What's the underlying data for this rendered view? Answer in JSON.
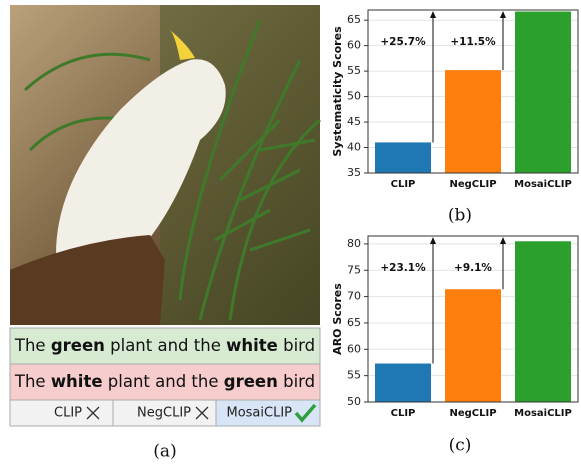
{
  "panel_a": {
    "captions": [
      {
        "segments": [
          {
            "text": "The",
            "bold": false
          },
          {
            "text": "green",
            "bold": true
          },
          {
            "text": "plant and the",
            "bold": false
          },
          {
            "text": "white",
            "bold": true
          },
          {
            "text": "bird",
            "bold": false
          }
        ],
        "color": "#d6ebd2"
      },
      {
        "segments": [
          {
            "text": "The",
            "bold": false
          },
          {
            "text": "white",
            "bold": true
          },
          {
            "text": "plant and the",
            "bold": false
          },
          {
            "text": "green",
            "bold": true
          },
          {
            "text": "bird",
            "bold": false
          }
        ],
        "color": "#f6cccc"
      }
    ],
    "models": [
      "CLIP",
      "NegCLIP",
      "MosaiCLIP"
    ],
    "panel_label": "(a)"
  },
  "chart_data": [
    {
      "type": "bar",
      "ylabel": "Systematicity Scores",
      "categories": [
        "CLIP",
        "NegCLIP",
        "MosaiCLIP"
      ],
      "values": [
        41,
        55.2,
        66.7
      ],
      "colors": [
        "#1f77b4",
        "#ff7f0e",
        "#2ca02c"
      ],
      "annotations": [
        "+25.7%",
        "+11.5%"
      ],
      "ylim": [
        35,
        67
      ],
      "yticks": [
        35,
        40,
        45,
        50,
        55,
        60,
        65
      ],
      "grid": true,
      "panel_label": "(b)"
    },
    {
      "type": "bar",
      "ylabel": "ARO Scores",
      "categories": [
        "CLIP",
        "NegCLIP",
        "MosaiCLIP"
      ],
      "values": [
        57.3,
        71.4,
        80.5
      ],
      "colors": [
        "#1f77b4",
        "#ff7f0e",
        "#2ca02c"
      ],
      "annotations": [
        "+23.1%",
        "+9.1%"
      ],
      "ylim": [
        50,
        81.5
      ],
      "yticks": [
        50,
        55,
        60,
        65,
        70,
        75,
        80
      ],
      "grid": true,
      "panel_label": "(c)"
    }
  ]
}
